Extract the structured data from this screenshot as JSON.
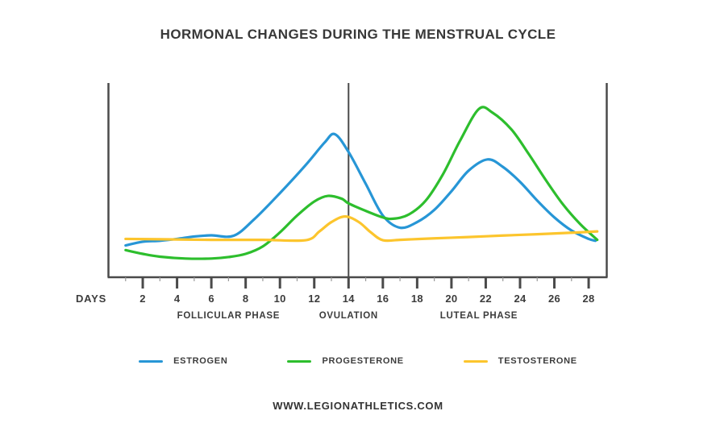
{
  "footer": {
    "url": "WWW.LEGIONATHLETICS.COM"
  },
  "chart_data": {
    "type": "line",
    "title": "HORMONAL CHANGES DURING THE MENSTRUAL CYCLE",
    "xlabel": "DAYS",
    "ylabel": "",
    "x_range": [
      0,
      29
    ],
    "y_range": [
      0,
      100
    ],
    "grid": false,
    "legend_position": "bottom",
    "x_ticks_major": [
      2,
      4,
      6,
      8,
      10,
      12,
      14,
      16,
      18,
      20,
      22,
      24,
      26,
      28
    ],
    "x_ticks_minor": [
      1,
      3,
      5,
      7,
      9,
      11,
      13,
      15,
      17,
      19,
      21,
      23,
      25,
      27
    ],
    "ovulation_line_day": 14,
    "phases": [
      {
        "label": "FOLLICULAR PHASE",
        "center_day": 7
      },
      {
        "label": "OVULATION",
        "center_day": 14
      },
      {
        "label": "LUTEAL PHASE",
        "center_day": 21.6
      }
    ],
    "axis_color": "#4a4a4a",
    "minor_tick_color": "#9a9a9a",
    "text_color": "#3c3c3c",
    "series": [
      {
        "name": "ESTROGEN",
        "color": "#2796d6",
        "points": [
          [
            1,
            17
          ],
          [
            2,
            19
          ],
          [
            3,
            19.5
          ],
          [
            4,
            20.5
          ],
          [
            5,
            21.8
          ],
          [
            6,
            22.4
          ],
          [
            7.3,
            22.2
          ],
          [
            8.5,
            31
          ],
          [
            10,
            45
          ],
          [
            11.5,
            60
          ],
          [
            12.6,
            72
          ],
          [
            13.2,
            76.5
          ],
          [
            14,
            67
          ],
          [
            15,
            50
          ],
          [
            16,
            33
          ],
          [
            17,
            26.5
          ],
          [
            18,
            29.5
          ],
          [
            19,
            36
          ],
          [
            20,
            46
          ],
          [
            21,
            57
          ],
          [
            22.1,
            63
          ],
          [
            23,
            59
          ],
          [
            24,
            51
          ],
          [
            25,
            41
          ],
          [
            26,
            32
          ],
          [
            27,
            25
          ],
          [
            28,
            20.5
          ],
          [
            28.4,
            19.5
          ]
        ]
      },
      {
        "name": "PROGESTERONE",
        "color": "#2dbe2d",
        "points": [
          [
            1,
            14.5
          ],
          [
            2,
            12.5
          ],
          [
            3,
            11
          ],
          [
            4.5,
            10
          ],
          [
            6,
            10
          ],
          [
            7,
            10.8
          ],
          [
            8,
            12.5
          ],
          [
            9,
            16.5
          ],
          [
            10,
            24
          ],
          [
            11,
            33
          ],
          [
            12,
            40.5
          ],
          [
            12.8,
            43.5
          ],
          [
            13.6,
            42
          ],
          [
            14,
            39.5
          ],
          [
            15,
            35.5
          ],
          [
            16,
            32
          ],
          [
            16.6,
            31.3
          ],
          [
            17.5,
            33.5
          ],
          [
            18.5,
            41
          ],
          [
            19.5,
            55
          ],
          [
            20.5,
            73
          ],
          [
            21.6,
            90
          ],
          [
            22.4,
            88
          ],
          [
            23.5,
            79
          ],
          [
            24.5,
            66
          ],
          [
            25.5,
            52
          ],
          [
            26.5,
            39
          ],
          [
            27.5,
            28.5
          ],
          [
            28.5,
            20
          ]
        ]
      },
      {
        "name": "TESTOSTERONE",
        "color": "#fcc52d",
        "points": [
          [
            1,
            20.5
          ],
          [
            3,
            20.3
          ],
          [
            6,
            20
          ],
          [
            9,
            20
          ],
          [
            11.5,
            19.8
          ],
          [
            12.3,
            24.5
          ],
          [
            13,
            29.5
          ],
          [
            13.8,
            32.5
          ],
          [
            14.6,
            29.5
          ],
          [
            15.3,
            24
          ],
          [
            16,
            19.8
          ],
          [
            17,
            20
          ],
          [
            19,
            20.8
          ],
          [
            21,
            21.5
          ],
          [
            23,
            22.3
          ],
          [
            25,
            23
          ],
          [
            27,
            23.8
          ],
          [
            28.5,
            24.5
          ]
        ]
      }
    ]
  }
}
